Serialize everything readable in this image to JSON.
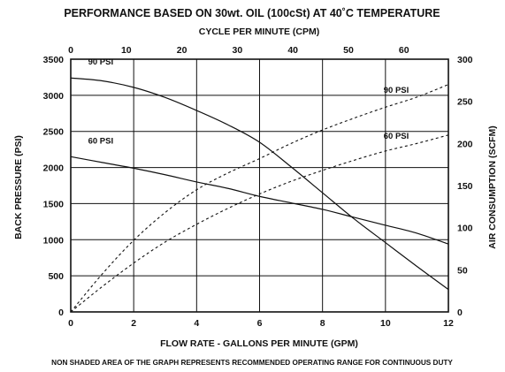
{
  "chart_data": {
    "type": "line",
    "title": "PERFORMANCE BASED ON 30wt. OIL (100cSt) AT 40˚C TEMPERATURE",
    "footnote": "NON SHADED AREA OF THE GRAPH REPRESENTS RECOMMENDED OPERATING RANGE FOR CONTINUOUS DUTY",
    "xlabel": "FLOW RATE - GALLONS PER MINUTE (GPM)",
    "x2label": "CYCLE PER MINUTE (CPM)",
    "ylabel": "BACK PRESSURE (PSI)",
    "y2label": "AIR CONSUMPTION (SCFM)",
    "xlim": [
      0,
      12
    ],
    "ylim": [
      0,
      3500
    ],
    "x2lim": [
      0,
      68
    ],
    "y2lim": [
      0,
      300
    ],
    "x_ticks": [
      0,
      2,
      4,
      6,
      8,
      10,
      12
    ],
    "y_ticks": [
      0,
      500,
      1000,
      1500,
      2000,
      2500,
      3000,
      3500
    ],
    "x2_ticks": [
      0,
      10,
      20,
      30,
      40,
      50,
      60
    ],
    "y2_ticks": [
      0,
      50,
      100,
      150,
      200,
      250,
      300
    ],
    "grid": true,
    "series": [
      {
        "name": "90 PSI",
        "axis": "back_pressure",
        "style": "solid",
        "x": [
          0,
          1,
          2,
          3,
          4,
          5,
          6,
          7,
          8,
          9,
          10,
          11,
          12
        ],
        "y": [
          3240,
          3200,
          3110,
          2970,
          2790,
          2590,
          2350,
          2010,
          1650,
          1290,
          960,
          630,
          310
        ]
      },
      {
        "name": "60 PSI",
        "axis": "back_pressure",
        "style": "solid",
        "x": [
          0,
          1,
          2,
          3,
          4,
          5,
          6,
          7,
          8,
          9,
          10,
          11,
          12
        ],
        "y": [
          2150,
          2070,
          1990,
          1900,
          1800,
          1710,
          1600,
          1510,
          1420,
          1310,
          1200,
          1090,
          940
        ]
      },
      {
        "name": "90 PSI",
        "axis": "air_consumption",
        "style": "dashed",
        "x": [
          0,
          1,
          2,
          3,
          4,
          5,
          6,
          7,
          8,
          9,
          10,
          11,
          12
        ],
        "y": [
          0,
          45,
          85,
          118,
          145,
          165,
          182,
          200,
          216,
          230,
          243,
          255,
          270
        ]
      },
      {
        "name": "60 PSI",
        "axis": "air_consumption",
        "style": "dashed",
        "x": [
          0,
          1,
          2,
          3,
          4,
          5,
          6,
          7,
          8,
          9,
          10,
          11,
          12
        ],
        "y": [
          0,
          30,
          58,
          83,
          104,
          123,
          140,
          155,
          168,
          180,
          191,
          200,
          210
        ]
      }
    ]
  }
}
